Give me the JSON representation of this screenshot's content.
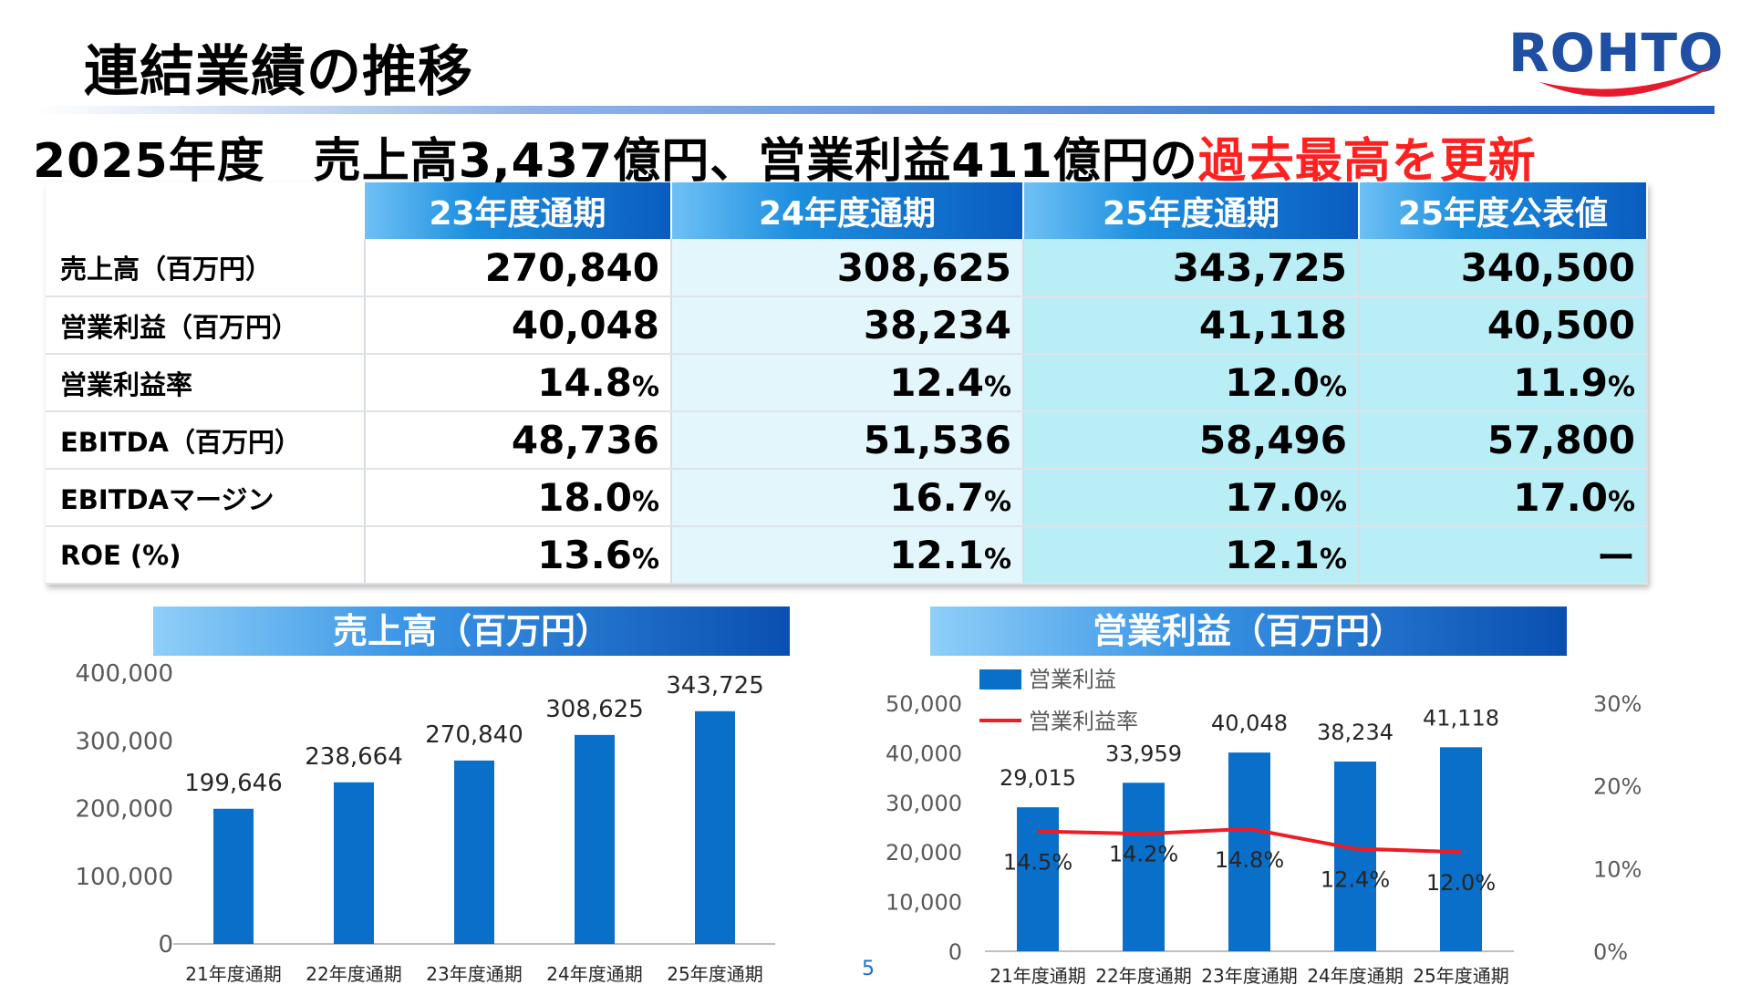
{
  "title": "連結業績の推移",
  "logo_text": "ROHTO",
  "headline": {
    "main": "2025年度　売上高3,437億円、営業利益411億円の",
    "emphasis": "過去最高を更新"
  },
  "table": {
    "columns": [
      "23年度通期",
      "24年度通期",
      "25年度通期",
      "25年度公表値"
    ],
    "rows": [
      {
        "label": "売上高（百万円）",
        "values": [
          "270,840",
          "308,625",
          "343,725",
          "340,500"
        ],
        "units": [
          "",
          "",
          "",
          ""
        ]
      },
      {
        "label": "営業利益（百万円）",
        "values": [
          "40,048",
          "38,234",
          "41,118",
          "40,500"
        ],
        "units": [
          "",
          "",
          "",
          ""
        ]
      },
      {
        "label": "営業利益率",
        "values": [
          "14.8",
          "12.4",
          "12.0",
          "11.9"
        ],
        "units": [
          "%",
          "%",
          "%",
          "%"
        ]
      },
      {
        "label": "EBITDA（百万円）",
        "values": [
          "48,736",
          "51,536",
          "58,496",
          "57,800"
        ],
        "units": [
          "",
          "",
          "",
          ""
        ]
      },
      {
        "label": "EBITDAマージン",
        "values": [
          "18.0",
          "16.7",
          "17.0",
          "17.0"
        ],
        "units": [
          "%",
          "%",
          "%",
          "%"
        ]
      },
      {
        "label": "ROE (%)",
        "values": [
          "13.6",
          "12.1",
          "12.1",
          "ー"
        ],
        "units": [
          "%",
          "%",
          "%",
          ""
        ]
      }
    ]
  },
  "colors": {
    "bar": "#0a6fc8",
    "line": "#ee1c25",
    "emphasis": "#ff2020"
  },
  "page_number": "5",
  "chart_data": [
    {
      "type": "bar",
      "title": "売上高（百万円）",
      "categories": [
        "21年度通期",
        "22年度通期",
        "23年度通期",
        "24年度通期",
        "25年度通期"
      ],
      "values": [
        199646,
        238664,
        270840,
        308625,
        343725
      ],
      "labels": [
        "199,646",
        "238,664",
        "270,840",
        "308,625",
        "343,725"
      ],
      "ylim": [
        0,
        400000
      ],
      "yticks": [
        "0",
        "100,000",
        "200,000",
        "300,000",
        "400,000"
      ],
      "grid": false
    },
    {
      "type": "bar",
      "title": "営業利益（百万円）",
      "categories": [
        "21年度通期",
        "22年度通期",
        "23年度通期",
        "24年度通期",
        "25年度通期"
      ],
      "series": [
        {
          "name": "営業利益",
          "type": "bar",
          "values": [
            29015,
            33959,
            40048,
            38234,
            41118
          ],
          "labels": [
            "29,015",
            "33,959",
            "40,048",
            "38,234",
            "41,118"
          ]
        },
        {
          "name": "営業利益率",
          "type": "line",
          "axis": "right",
          "values": [
            14.5,
            14.2,
            14.8,
            12.4,
            12.0
          ],
          "labels": [
            "14.5%",
            "14.2%",
            "14.8%",
            "12.4%",
            "12.0%"
          ]
        }
      ],
      "ylim": [
        0,
        50000
      ],
      "yticks": [
        "0",
        "10,000",
        "20,000",
        "30,000",
        "40,000",
        "50,000"
      ],
      "y2lim": [
        0,
        30
      ],
      "y2ticks": [
        "0%",
        "10%",
        "20%",
        "30%"
      ],
      "legend": "top-left",
      "grid": false
    }
  ]
}
